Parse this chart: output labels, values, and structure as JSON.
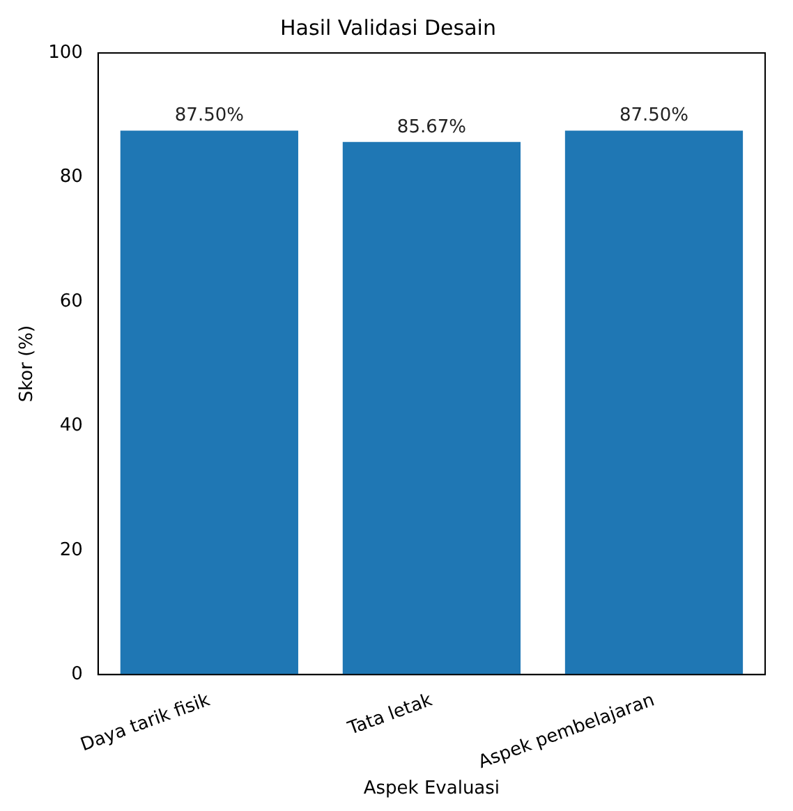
{
  "chart_data": {
    "type": "bar",
    "title": "Hasil Validasi Desain",
    "xlabel": "Aspek Evaluasi",
    "ylabel": "Skor (%)",
    "categories": [
      "Daya tarik fisik",
      "Tata letak",
      "Aspek pembelajaran"
    ],
    "values": [
      87.5,
      85.67,
      87.5
    ],
    "value_labels": [
      "87.50%",
      "85.67%",
      "87.50%"
    ],
    "color": "#1f77b4",
    "ylim": [
      0,
      100
    ],
    "yticks": [
      0,
      20,
      40,
      60,
      80,
      100
    ],
    "grid": false,
    "legend": false
  }
}
